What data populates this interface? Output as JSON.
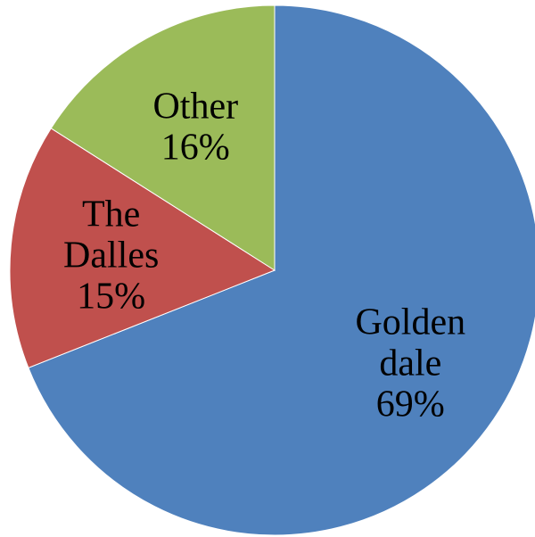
{
  "chart_data": {
    "type": "pie",
    "title": "",
    "start_angle_deg": 0,
    "direction": "clockwise",
    "slices": [
      {
        "name": "Golden dale",
        "label_lines": [
          "Golden",
          "dale"
        ],
        "percent_label": "69%",
        "value": 69,
        "color": "#4F81BD"
      },
      {
        "name": "The Dalles",
        "label_lines": [
          "The",
          "Dalles"
        ],
        "percent_label": "15%",
        "value": 15,
        "color": "#C0504D"
      },
      {
        "name": "Other",
        "label_lines": [
          "Other"
        ],
        "percent_label": "16%",
        "value": 16,
        "color": "#9BBB59"
      }
    ]
  }
}
